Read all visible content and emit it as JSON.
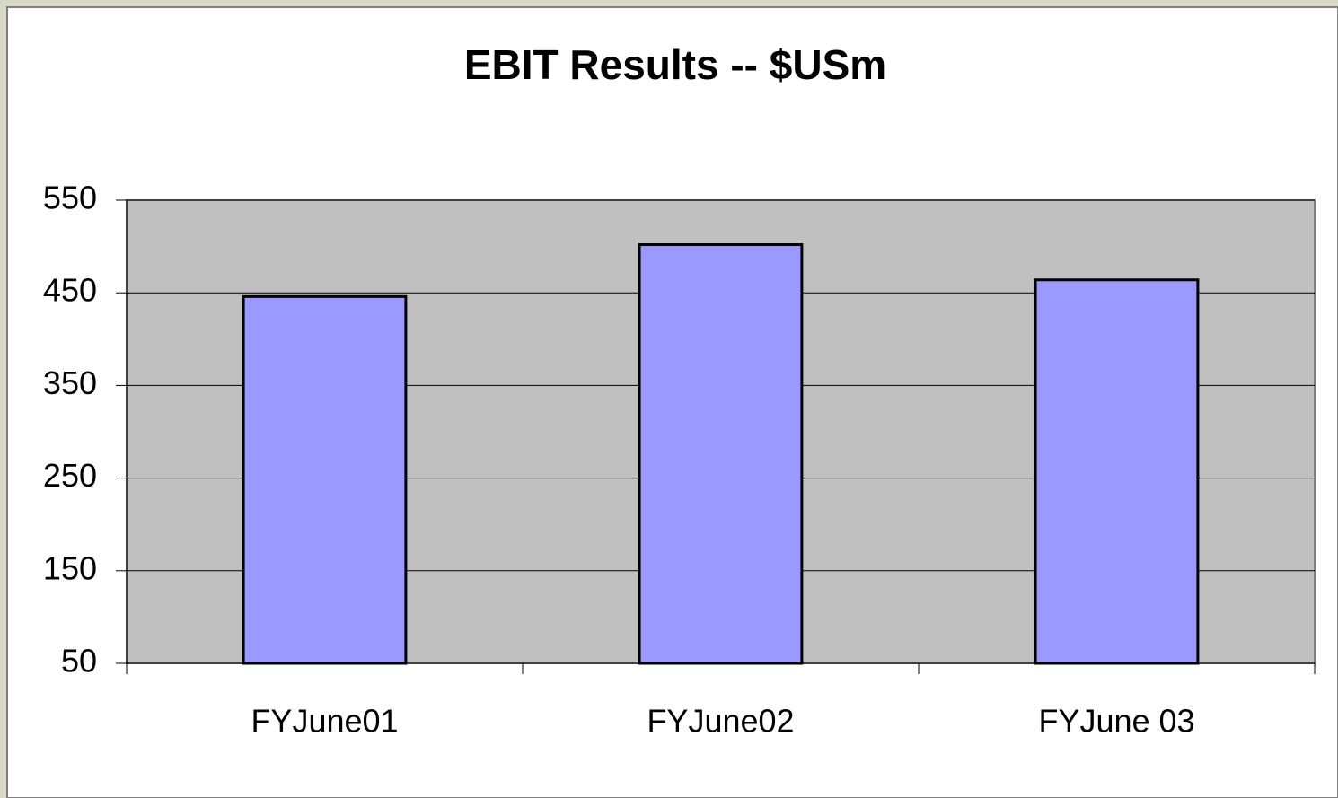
{
  "chart_data": {
    "type": "bar",
    "title": "EBIT Results -- $USm",
    "categories": [
      "FYJune01",
      "FYJune02",
      "FYJune 03"
    ],
    "values": [
      446,
      502,
      464
    ],
    "color": "#9999ff",
    "ylim": [
      50,
      550
    ],
    "yticks": [
      50,
      150,
      250,
      350,
      450,
      550
    ],
    "grid": true
  }
}
